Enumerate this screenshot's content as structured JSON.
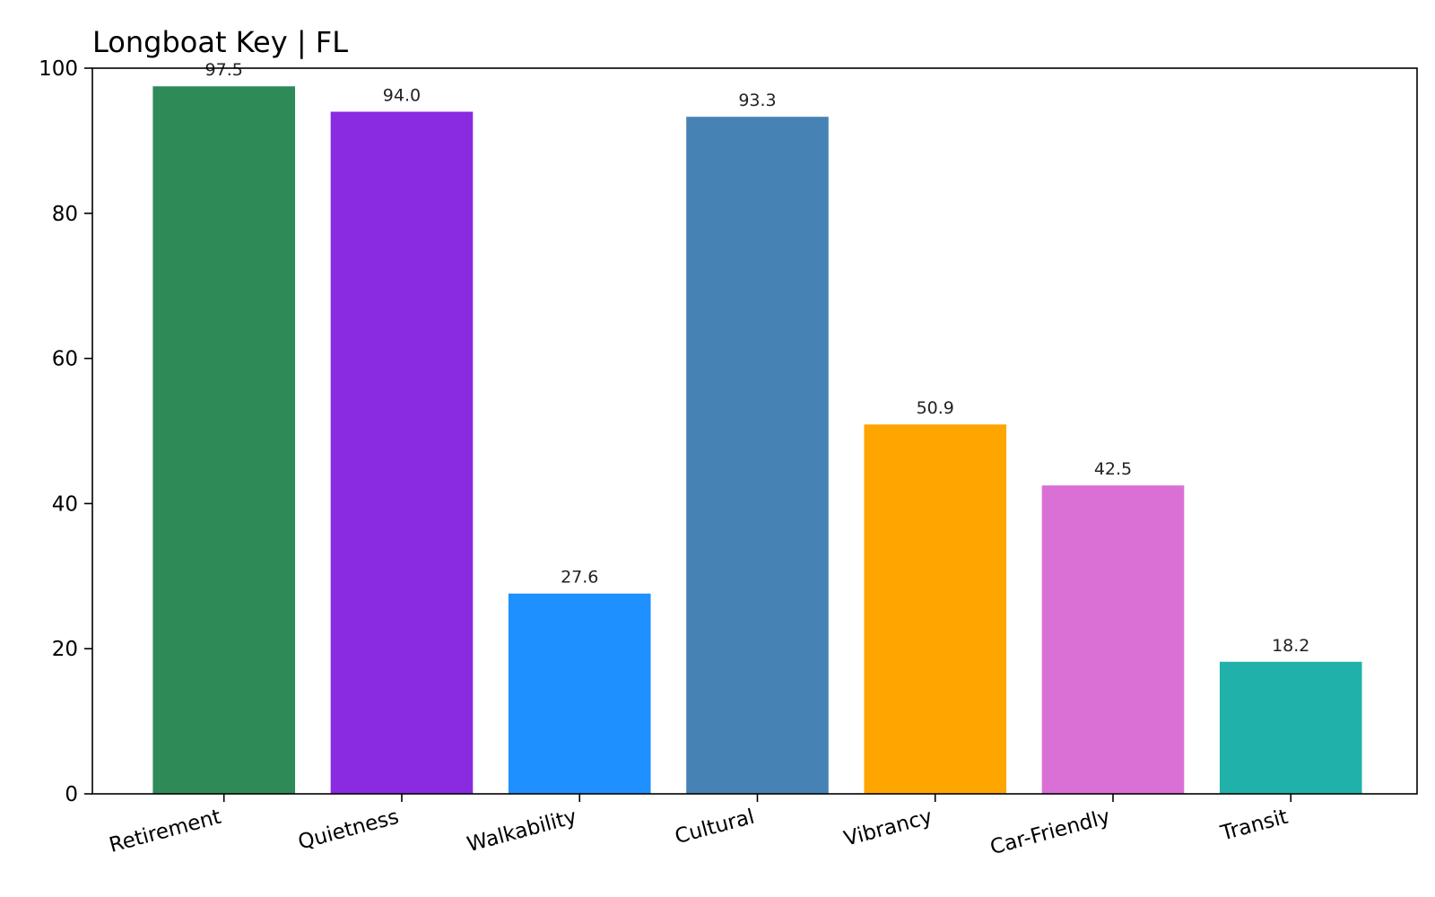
{
  "chart_data": {
    "type": "bar",
    "title": "Longboat Key | FL",
    "xlabel": "",
    "ylabel": "",
    "categories": [
      "Retirement",
      "Quietness",
      "Walkability",
      "Cultural",
      "Vibrancy",
      "Car-Friendly",
      "Transit"
    ],
    "values": [
      97.5,
      94.0,
      27.6,
      93.3,
      50.9,
      42.5,
      18.2
    ],
    "value_labels": [
      "97.5",
      "94.0",
      "27.6",
      "93.3",
      "50.9",
      "42.5",
      "18.2"
    ],
    "colors": [
      "#2e8b57",
      "#8a2be2",
      "#1e90ff",
      "#4682b4",
      "#ffa500",
      "#da70d6",
      "#20b2aa"
    ],
    "ylim": [
      0,
      100
    ],
    "yticks": [
      0,
      20,
      40,
      60,
      80,
      100
    ],
    "ytick_labels": [
      "0",
      "20",
      "40",
      "60",
      "80",
      "100"
    ],
    "grid": false,
    "legend": "none"
  }
}
